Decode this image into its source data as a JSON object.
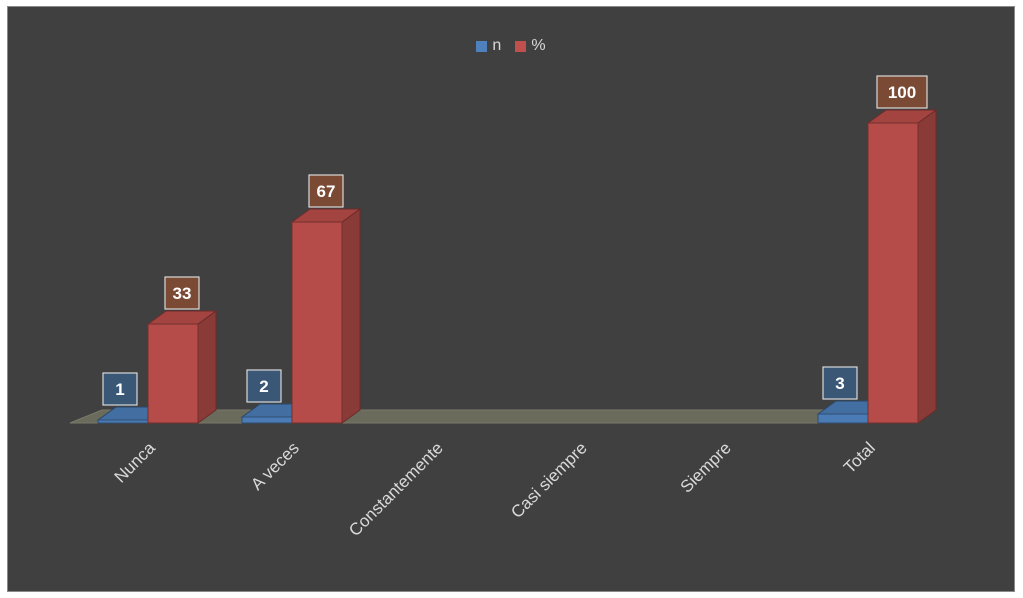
{
  "chart_data": {
    "type": "bar",
    "title": "",
    "xlabel": "",
    "ylabel": "",
    "categories": [
      "Nunca",
      "A veces",
      "Constantemente",
      "Casi siempre",
      "Siempre",
      "Total"
    ],
    "series": [
      {
        "name": "n",
        "values": [
          1,
          2,
          null,
          null,
          null,
          3
        ],
        "color": "#4f81bd"
      },
      {
        "name": "%",
        "values": [
          33,
          67,
          null,
          null,
          null,
          100
        ],
        "color": "#c0504d"
      }
    ],
    "ylim": [
      0,
      100
    ],
    "grid": false,
    "legend": "top-center",
    "style": "3d-clustered-column"
  }
}
